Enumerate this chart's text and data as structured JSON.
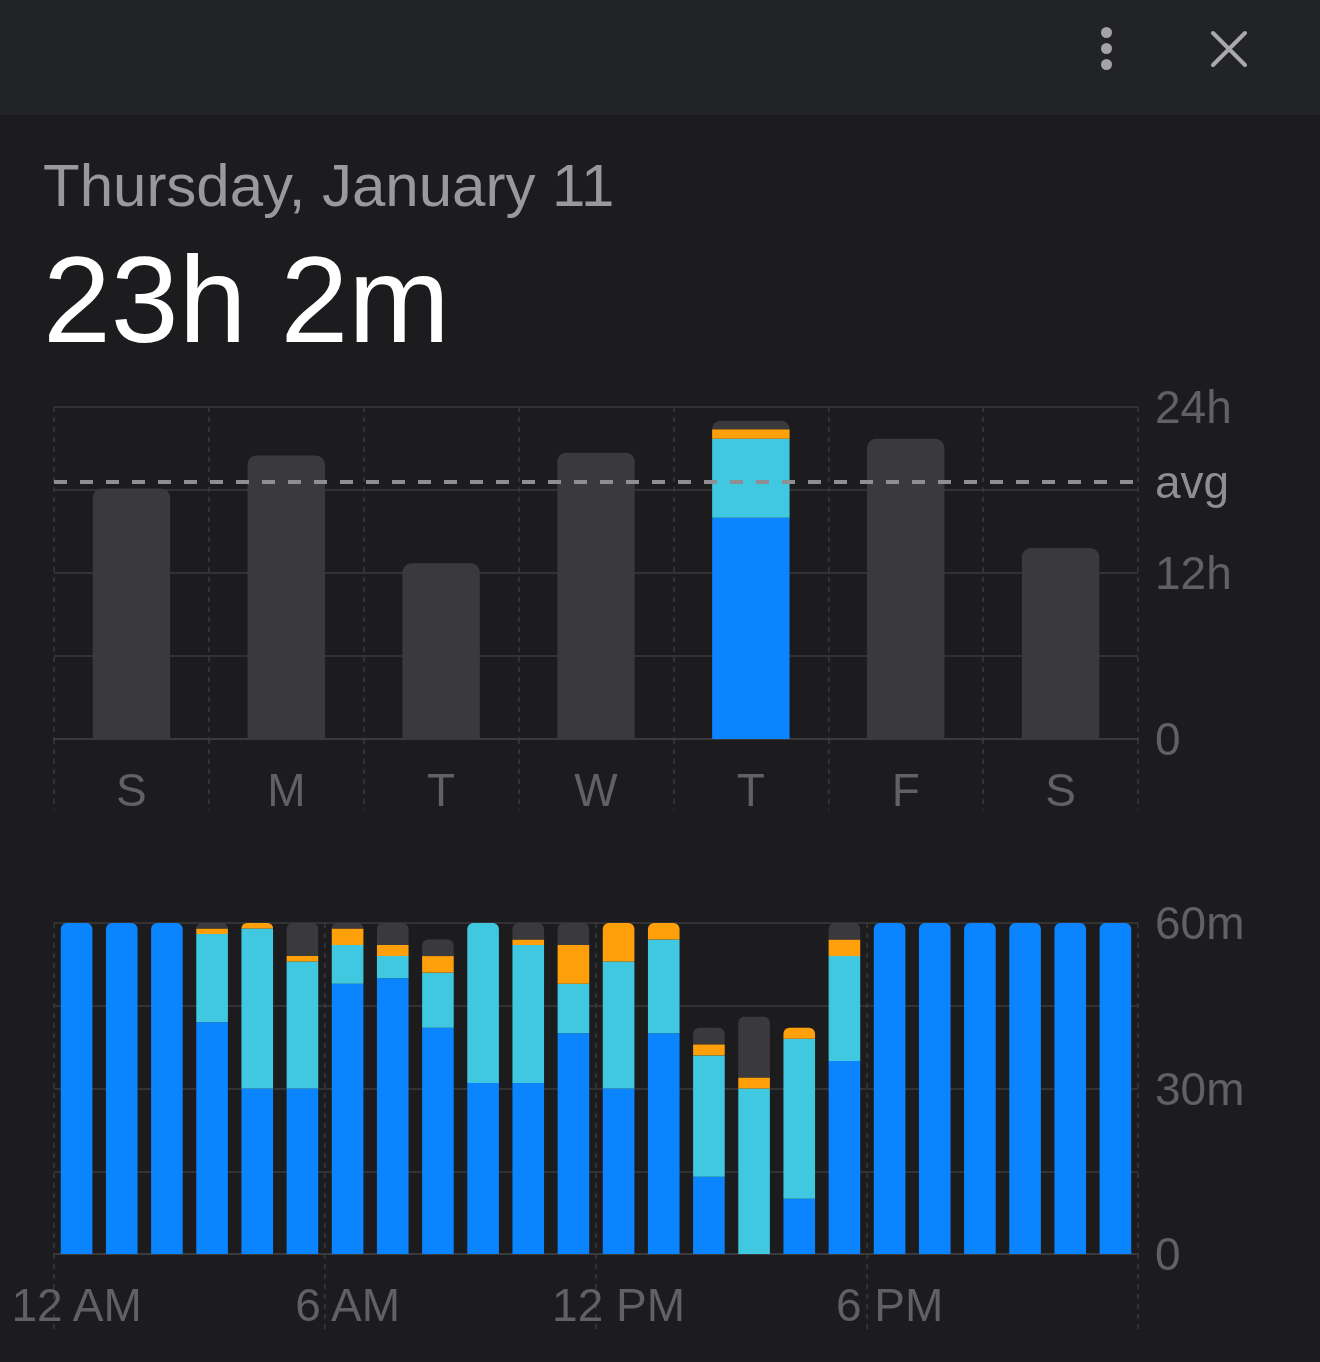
{
  "chart_data": [
    {
      "type": "bar",
      "title": "Thursday, January 11",
      "subtitle": "23h 2m",
      "categories": [
        "S",
        "M",
        "T",
        "W",
        "T",
        "F",
        "S"
      ],
      "stacked": true,
      "series": [
        {
          "color": "#0a84ff",
          "values": [
            null,
            null,
            null,
            null,
            16.0,
            null,
            null
          ]
        },
        {
          "color": "#40c8e0",
          "values": [
            null,
            null,
            null,
            null,
            5.7,
            null,
            null
          ]
        },
        {
          "color": "#ff9f0a",
          "values": [
            null,
            null,
            null,
            null,
            0.7,
            null,
            null
          ]
        },
        {
          "color": "#3a3a3c",
          "values": [
            18.1,
            20.5,
            12.7,
            20.7,
            0.6,
            21.7,
            13.8
          ]
        }
      ],
      "ylim": [
        0,
        24
      ],
      "yticks": [
        0,
        {
          "value": 6,
          "label": null
        },
        {
          "value": 12,
          "label": "12h"
        },
        {
          "value": 18,
          "label": null
        },
        {
          "value": 24,
          "label": "24h"
        }
      ],
      "ref_lines": [
        {
          "axis": "y",
          "value": 18.6,
          "label": "avg",
          "color": "#8e8e93",
          "line_style": "dashed"
        }
      ],
      "grid": true
    },
    {
      "type": "bar",
      "categories": [
        "12 AM",
        null,
        null,
        null,
        null,
        null,
        "6 AM",
        null,
        null,
        null,
        null,
        null,
        "12 PM",
        null,
        null,
        null,
        null,
        null,
        "6 PM",
        null,
        null,
        null,
        null,
        null
      ],
      "stacked": true,
      "series": [
        {
          "color": "#0a84ff",
          "values": [
            60,
            60,
            60,
            42,
            30,
            30,
            49,
            50,
            41,
            31,
            31,
            40,
            30,
            40,
            14,
            null,
            10,
            35,
            60,
            60,
            60,
            60,
            60,
            60
          ]
        },
        {
          "color": "#40c8e0",
          "values": [
            null,
            null,
            null,
            16,
            29,
            23,
            7,
            4,
            10,
            29,
            25,
            9,
            23,
            17,
            22,
            30,
            29,
            19,
            null,
            null,
            null,
            null,
            null,
            null
          ]
        },
        {
          "color": "#ff9f0a",
          "values": [
            null,
            null,
            null,
            1,
            1,
            1,
            3,
            2,
            3,
            null,
            1,
            7,
            7,
            3,
            2,
            2,
            2,
            3,
            null,
            null,
            null,
            null,
            null,
            null
          ]
        },
        {
          "color": "#3a3a3c",
          "values": [
            null,
            null,
            null,
            1,
            null,
            6,
            1,
            4,
            3,
            null,
            3,
            4,
            null,
            null,
            3,
            11,
            null,
            3,
            null,
            null,
            null,
            null,
            null,
            null
          ]
        }
      ],
      "ylim": [
        0,
        60
      ],
      "yticks": [
        0,
        {
          "value": 15,
          "label": null
        },
        {
          "value": 30,
          "label": "30m"
        },
        {
          "value": 45,
          "label": null
        },
        {
          "value": 60,
          "label": "60m"
        }
      ],
      "grid": true
    }
  ]
}
